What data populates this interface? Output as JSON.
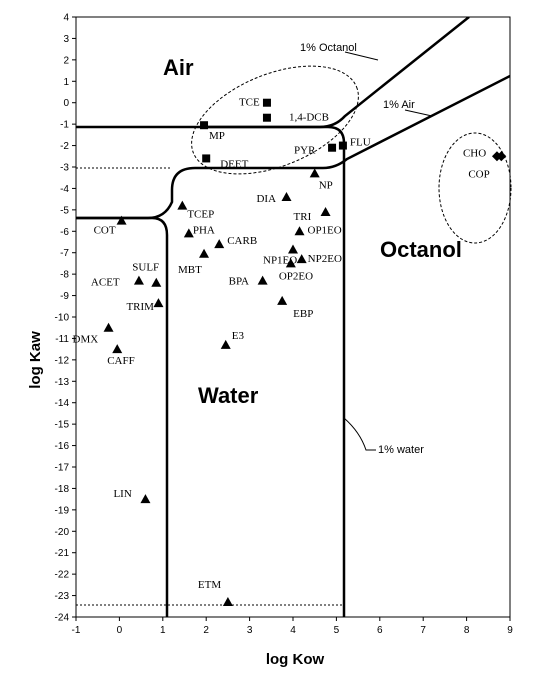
{
  "chart_data": {
    "type": "scatter",
    "xlabel": "log Kow",
    "ylabel": "log Kaw",
    "xlim": [
      -1,
      9
    ],
    "ylim": [
      -24,
      4
    ],
    "x_ticks": [
      "-1",
      "0",
      "1",
      "2",
      "3",
      "4",
      "5",
      "6",
      "7",
      "8",
      "9"
    ],
    "y_ticks": [
      "4",
      "3",
      "2",
      "1",
      "0",
      "-1",
      "-2",
      "-3",
      "-4",
      "-5",
      "-6",
      "-7",
      "-8",
      "-9",
      "-10",
      "-11",
      "-12",
      "-13",
      "-14",
      "-15",
      "-16",
      "-17",
      "-18",
      "-19",
      "-20",
      "-21",
      "-22",
      "-23",
      "-24"
    ],
    "regions": {
      "air": "Air",
      "water": "Water",
      "octanol": "Octanol"
    },
    "annotations": {
      "octanol_1pct": "1% Octanol",
      "air_1pct": "1% Air",
      "water_1pct": "1% water"
    },
    "points": [
      {
        "label": "TCE",
        "x": 3.4,
        "y": 0.0,
        "marker": "square"
      },
      {
        "label": "1,4-DCB",
        "x": 3.4,
        "y": -0.7,
        "marker": "square"
      },
      {
        "label": "MP",
        "x": 1.95,
        "y": -1.05,
        "marker": "square"
      },
      {
        "label": "DEET",
        "x": 2.0,
        "y": -2.6,
        "marker": "square"
      },
      {
        "label": "PYR",
        "x": 4.9,
        "y": -2.1,
        "marker": "square"
      },
      {
        "label": "FLU",
        "x": 5.15,
        "y": -2.0,
        "marker": "square"
      },
      {
        "label": "CHO",
        "x": 8.7,
        "y": -2.5,
        "marker": "diamond"
      },
      {
        "label": "COP",
        "x": 8.8,
        "y": -2.5,
        "marker": "diamond"
      },
      {
        "label": "NP",
        "x": 4.5,
        "y": -3.3,
        "marker": "triangle"
      },
      {
        "label": "DIA",
        "x": 3.85,
        "y": -4.4,
        "marker": "triangle"
      },
      {
        "label": "TCEP",
        "x": 1.45,
        "y": -4.8,
        "marker": "triangle"
      },
      {
        "label": "TRI",
        "x": 4.75,
        "y": -5.1,
        "marker": "triangle"
      },
      {
        "label": "COT",
        "x": 0.05,
        "y": -5.5,
        "marker": "triangle"
      },
      {
        "label": "OP1EO",
        "x": 4.15,
        "y": -6.0,
        "marker": "triangle"
      },
      {
        "label": "PHA",
        "x": 1.6,
        "y": -6.1,
        "marker": "triangle"
      },
      {
        "label": "CARB",
        "x": 2.3,
        "y": -6.6,
        "marker": "triangle"
      },
      {
        "label": "NP1EO",
        "x": 4.0,
        "y": -6.85,
        "marker": "triangle"
      },
      {
        "label": "MBT",
        "x": 1.95,
        "y": -7.05,
        "marker": "triangle"
      },
      {
        "label": "NP2EO",
        "x": 4.2,
        "y": -7.3,
        "marker": "triangle"
      },
      {
        "label": "SULF",
        "x": 0.85,
        "y": -8.4,
        "marker": "triangle"
      },
      {
        "label": "ACET",
        "x": 0.45,
        "y": -8.3,
        "marker": "triangle"
      },
      {
        "label": "BPA",
        "x": 3.3,
        "y": -8.3,
        "marker": "triangle"
      },
      {
        "label": "OP2EO",
        "x": 3.95,
        "y": -7.5,
        "marker": "triangle"
      },
      {
        "label": "EBP",
        "x": 3.75,
        "y": -9.25,
        "marker": "triangle"
      },
      {
        "label": "TRIM",
        "x": 0.9,
        "y": -9.35,
        "marker": "triangle"
      },
      {
        "label": "DMX",
        "x": -0.25,
        "y": -10.5,
        "marker": "triangle"
      },
      {
        "label": "E3",
        "x": 2.45,
        "y": -11.3,
        "marker": "triangle"
      },
      {
        "label": "CAFF",
        "x": -0.05,
        "y": -11.5,
        "marker": "triangle"
      },
      {
        "label": "LIN",
        "x": 0.6,
        "y": -18.5,
        "marker": "triangle"
      },
      {
        "label": "ETM",
        "x": 2.5,
        "y": -23.3,
        "marker": "triangle"
      }
    ]
  }
}
